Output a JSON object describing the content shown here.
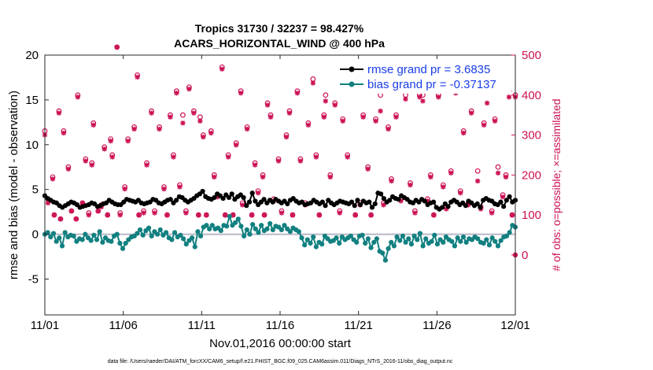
{
  "chart_data": {
    "type": "line",
    "title_line1": "Tropics 31730 / 32237 = 98.427%",
    "title_line2": "ACARS_HORIZONTAL_WIND @ 400 hPa",
    "ylabel_left": "rmse and bias (model - observation)",
    "ylabel_right": "# of obs: o=possible; ×=assimilated",
    "xlabel": "Nov.01,2016 00:00:00 start",
    "footer": "data file: /Users/raeder/DAI/ATM_forcXX/CAM6_setup/f.e21.FHIST_BGC.f09_025.CAM6assim.011/Diags_NTrS_2016-11/obs_diag_output.nc",
    "x_ticks": [
      "11/01",
      "11/06",
      "11/11",
      "11/16",
      "11/21",
      "11/26",
      "12/01"
    ],
    "x_range_days": [
      0,
      30
    ],
    "ylim_left": [
      -9,
      20
    ],
    "yticks_left": [
      "-5",
      "0",
      "5",
      "10",
      "15",
      "20"
    ],
    "ylim_right": [
      -150,
      500
    ],
    "yticks_right": [
      "0",
      "100",
      "200",
      "300",
      "400",
      "500"
    ],
    "colors": {
      "rmse": "#000000",
      "bias": "#128080",
      "obs": "#cc1155",
      "zero_line": "#b8b8c8",
      "legend_text": "#1a3ee8"
    },
    "legend": [
      {
        "key": "rmse",
        "label": "rmse grand pr = 3.6835"
      },
      {
        "key": "bias",
        "label": "bias grand pr = -0.37137"
      }
    ],
    "series": [
      {
        "name": "rmse",
        "values": [
          4.3,
          4.0,
          3.8,
          3.6,
          3.5,
          3.2,
          3.0,
          3.2,
          3.4,
          3.6,
          3.5,
          3.3,
          3.0,
          3.1,
          3.2,
          3.3,
          3.5,
          3.4,
          3.1,
          3.2,
          3.4,
          3.5,
          3.8,
          3.6,
          3.4,
          3.3,
          3.3,
          3.6,
          3.9,
          3.8,
          3.7,
          3.6,
          3.8,
          3.5,
          3.4,
          3.5,
          3.6,
          3.9,
          3.8,
          3.5,
          3.4,
          3.6,
          3.8,
          3.9,
          3.5,
          3.8,
          4.2,
          4.1,
          3.8,
          3.6,
          3.8,
          4.0,
          4.3,
          4.5,
          4.8,
          4.2,
          4.0,
          3.9,
          4.1,
          4.5,
          4.3,
          4.0,
          4.4,
          4.1,
          4.5,
          3.9,
          4.2,
          4.4,
          4.1,
          3.2,
          3.6,
          4.6,
          3.7,
          3.3,
          3.6,
          3.9,
          3.5,
          3.8,
          3.6,
          3.9,
          3.7,
          3.5,
          3.7,
          3.4,
          3.8,
          4.0,
          3.7,
          3.5,
          3.6,
          3.3,
          3.4,
          3.5,
          3.8,
          3.6,
          3.4,
          3.6,
          3.2,
          3.8,
          3.5,
          3.3,
          3.5,
          3.7,
          3.6,
          3.5,
          3.4,
          3.6,
          3.2,
          3.8,
          3.3,
          3.7,
          3.5,
          3.6,
          3.0,
          3.4,
          4.6,
          4.5,
          4.0,
          3.6,
          3.8,
          4.2,
          4.0,
          3.9,
          4.3,
          4.1,
          3.9,
          3.6,
          3.5,
          3.8,
          3.6,
          3.9,
          3.7,
          3.3,
          3.5,
          3.6,
          3.0,
          2.8,
          3.0,
          3.4,
          3.1,
          3.6,
          3.8,
          3.6,
          3.3,
          3.5,
          3.2,
          3.7,
          3.5,
          3.2,
          3.4,
          3.0,
          3.8,
          4.0,
          3.8,
          3.7,
          3.4,
          3.3,
          3.6,
          3.1,
          3.8,
          4.2,
          3.6,
          3.8
        ]
      },
      {
        "name": "bias",
        "values": [
          0.0,
          0.2,
          -0.3,
          0.1,
          -0.8,
          -0.4,
          -1.3,
          0.2,
          -0.3,
          -0.1,
          -0.2,
          -0.8,
          -0.5,
          -0.6,
          0.0,
          -0.4,
          -0.7,
          -0.1,
          -0.6,
          0.3,
          -0.9,
          -0.4,
          -0.7,
          -0.8,
          -0.2,
          0.0,
          -1.0,
          -1.6,
          -1.0,
          -0.6,
          -0.3,
          -0.2,
          0.1,
          0.5,
          -0.1,
          0.4,
          0.7,
          -0.2,
          0.3,
          0.0,
          0.5,
          -0.1,
          0.2,
          -0.4,
          -0.6,
          0.2,
          -0.3,
          -0.1,
          -0.5,
          -1.1,
          -0.7,
          -0.4,
          -1.4,
          0.3,
          -0.2,
          0.8,
          1.0,
          0.6,
          1.0,
          0.6,
          0.7,
          0.4,
          1.0,
          0.9,
          2.0,
          1.0,
          1.3,
          1.7,
          0.9,
          -0.2,
          0.5,
          0.0,
          1.1,
          0.6,
          0.2,
          1.0,
          0.4,
          0.6,
          1.2,
          0.5,
          0.9,
          0.8,
          0.5,
          1.0,
          0.6,
          0.3,
          0.7,
          0.5,
          0.3,
          -0.4,
          -1.2,
          -0.6,
          -1.0,
          -0.3,
          -1.4,
          -0.9,
          -1.1,
          -0.2,
          -0.5,
          -0.8,
          -0.7,
          -0.4,
          -1.0,
          -0.3,
          -0.6,
          -0.4,
          -0.2,
          -0.6,
          -0.9,
          -0.2,
          -0.1,
          -1.0,
          -0.5,
          -1.5,
          -0.9,
          -0.5,
          -1.9,
          -2.1,
          -2.9,
          -1.6,
          -0.9,
          -1.3,
          -0.3,
          -0.7,
          -0.2,
          -0.9,
          -0.5,
          -1.1,
          -0.2,
          -0.6,
          0.1,
          -1.3,
          -0.5,
          -1.0,
          -0.8,
          -0.1,
          -1.1,
          -0.6,
          -0.9,
          -0.3,
          -0.6,
          -0.8,
          -1.3,
          -0.4,
          -0.8,
          -0.3,
          -0.9,
          -0.5,
          -0.6,
          -0.3,
          -0.5,
          -0.9,
          -1.0,
          -0.6,
          -1.2,
          -0.4,
          -0.8,
          -1.3,
          -0.7,
          -0.3,
          -0.2,
          0.2,
          1.0,
          0.8
        ]
      }
    ],
    "obs_possible": [
      [
        0.0,
        310
      ],
      [
        0.2,
        140
      ],
      [
        0.5,
        195
      ],
      [
        0.6,
        100
      ],
      [
        0.9,
        360
      ],
      [
        1.0,
        90
      ],
      [
        1.2,
        310
      ],
      [
        1.5,
        220
      ],
      [
        1.7,
        110
      ],
      [
        2.0,
        90
      ],
      [
        2.1,
        400
      ],
      [
        2.4,
        130
      ],
      [
        2.6,
        240
      ],
      [
        2.8,
        105
      ],
      [
        3.0,
        230
      ],
      [
        3.1,
        330
      ],
      [
        3.4,
        110
      ],
      [
        3.6,
        125
      ],
      [
        3.8,
        270
      ],
      [
        4.0,
        100
      ],
      [
        4.2,
        290
      ],
      [
        4.3,
        250
      ],
      [
        4.6,
        520
      ],
      [
        4.8,
        105
      ],
      [
        5.1,
        170
      ],
      [
        5.3,
        290
      ],
      [
        5.7,
        320
      ],
      [
        5.9,
        450
      ],
      [
        6.0,
        100
      ],
      [
        6.3,
        110
      ],
      [
        6.5,
        230
      ],
      [
        6.8,
        360
      ],
      [
        7.0,
        110
      ],
      [
        7.3,
        320
      ],
      [
        7.6,
        170
      ],
      [
        7.8,
        100
      ],
      [
        8.0,
        350
      ],
      [
        8.2,
        250
      ],
      [
        8.4,
        410
      ],
      [
        8.6,
        175
      ],
      [
        8.8,
        350
      ],
      [
        9.0,
        110
      ],
      [
        9.2,
        420
      ],
      [
        9.5,
        360
      ],
      [
        9.8,
        100
      ],
      [
        9.9,
        345
      ],
      [
        10.1,
        300
      ],
      [
        10.3,
        100
      ],
      [
        10.6,
        310
      ],
      [
        10.8,
        200
      ],
      [
        11.0,
        150
      ],
      [
        11.3,
        470
      ],
      [
        11.5,
        100
      ],
      [
        11.7,
        250
      ],
      [
        12.0,
        100
      ],
      [
        12.2,
        280
      ],
      [
        12.5,
        410
      ],
      [
        12.6,
        130
      ],
      [
        12.9,
        320
      ],
      [
        13.2,
        100
      ],
      [
        13.4,
        230
      ],
      [
        13.6,
        160
      ],
      [
        13.9,
        200
      ],
      [
        14.0,
        100
      ],
      [
        14.2,
        380
      ],
      [
        14.4,
        350
      ],
      [
        14.6,
        140
      ],
      [
        14.9,
        240
      ],
      [
        15.1,
        110
      ],
      [
        15.4,
        300
      ],
      [
        15.6,
        360
      ],
      [
        15.8,
        100
      ],
      [
        16.1,
        410
      ],
      [
        16.3,
        240
      ],
      [
        16.6,
        130
      ],
      [
        16.8,
        330
      ],
      [
        17.1,
        440
      ],
      [
        17.3,
        250
      ],
      [
        17.5,
        100
      ],
      [
        17.8,
        350
      ],
      [
        17.9,
        400
      ],
      [
        18.2,
        200
      ],
      [
        18.5,
        380
      ],
      [
        18.8,
        110
      ],
      [
        19.0,
        340
      ],
      [
        19.3,
        250
      ],
      [
        19.6,
        440
      ],
      [
        19.8,
        100
      ],
      [
        20.1,
        130
      ],
      [
        20.3,
        350
      ],
      [
        20.6,
        220
      ],
      [
        20.8,
        100
      ],
      [
        21.1,
        340
      ],
      [
        21.4,
        400
      ],
      [
        21.6,
        130
      ],
      [
        21.9,
        320
      ],
      [
        22.1,
        190
      ],
      [
        22.4,
        350
      ],
      [
        22.7,
        140
      ],
      [
        23.0,
        400
      ],
      [
        23.3,
        180
      ],
      [
        23.6,
        110
      ],
      [
        23.9,
        400
      ],
      [
        24.1,
        400
      ],
      [
        24.4,
        140
      ],
      [
        24.6,
        200
      ],
      [
        24.8,
        100
      ],
      [
        25.1,
        400
      ],
      [
        25.4,
        175
      ],
      [
        25.6,
        120
      ],
      [
        25.9,
        210
      ],
      [
        26.2,
        410
      ],
      [
        26.5,
        160
      ],
      [
        26.7,
        310
      ],
      [
        27.0,
        130
      ],
      [
        27.2,
        360
      ],
      [
        27.4,
        420
      ],
      [
        27.6,
        210
      ],
      [
        27.8,
        120
      ],
      [
        28.0,
        330
      ],
      [
        28.2,
        410
      ],
      [
        28.5,
        110
      ],
      [
        28.7,
        340
      ],
      [
        28.9,
        220
      ],
      [
        29.2,
        150
      ],
      [
        29.4,
        200
      ],
      [
        29.6,
        410
      ],
      [
        29.8,
        100
      ],
      [
        30.0,
        400
      ]
    ],
    "obs_assimilated": [
      [
        0.0,
        300
      ],
      [
        0.2,
        130
      ],
      [
        0.5,
        190
      ],
      [
        0.6,
        100
      ],
      [
        0.9,
        355
      ],
      [
        1.0,
        90
      ],
      [
        1.2,
        305
      ],
      [
        1.5,
        215
      ],
      [
        1.7,
        110
      ],
      [
        2.0,
        90
      ],
      [
        2.1,
        395
      ],
      [
        2.4,
        130
      ],
      [
        2.6,
        235
      ],
      [
        2.8,
        100
      ],
      [
        3.0,
        225
      ],
      [
        3.1,
        325
      ],
      [
        3.4,
        110
      ],
      [
        3.6,
        120
      ],
      [
        3.8,
        265
      ],
      [
        4.0,
        100
      ],
      [
        4.2,
        285
      ],
      [
        4.3,
        245
      ],
      [
        4.6,
        520
      ],
      [
        4.8,
        100
      ],
      [
        5.1,
        165
      ],
      [
        5.3,
        285
      ],
      [
        5.7,
        315
      ],
      [
        5.9,
        445
      ],
      [
        6.0,
        100
      ],
      [
        6.3,
        105
      ],
      [
        6.5,
        225
      ],
      [
        6.8,
        355
      ],
      [
        7.0,
        105
      ],
      [
        7.3,
        315
      ],
      [
        7.6,
        165
      ],
      [
        7.8,
        100
      ],
      [
        8.0,
        345
      ],
      [
        8.2,
        245
      ],
      [
        8.4,
        405
      ],
      [
        8.6,
        170
      ],
      [
        8.8,
        330
      ],
      [
        9.0,
        105
      ],
      [
        9.2,
        415
      ],
      [
        9.5,
        355
      ],
      [
        9.8,
        100
      ],
      [
        9.9,
        335
      ],
      [
        10.1,
        295
      ],
      [
        10.3,
        100
      ],
      [
        10.6,
        305
      ],
      [
        10.8,
        195
      ],
      [
        11.0,
        145
      ],
      [
        11.3,
        465
      ],
      [
        11.5,
        100
      ],
      [
        11.7,
        245
      ],
      [
        12.0,
        100
      ],
      [
        12.2,
        275
      ],
      [
        12.5,
        405
      ],
      [
        12.6,
        125
      ],
      [
        12.9,
        315
      ],
      [
        13.2,
        100
      ],
      [
        13.4,
        225
      ],
      [
        13.6,
        155
      ],
      [
        13.9,
        195
      ],
      [
        14.0,
        100
      ],
      [
        14.2,
        375
      ],
      [
        14.4,
        345
      ],
      [
        14.6,
        135
      ],
      [
        14.9,
        235
      ],
      [
        15.1,
        105
      ],
      [
        15.4,
        295
      ],
      [
        15.6,
        355
      ],
      [
        15.8,
        100
      ],
      [
        16.1,
        405
      ],
      [
        16.3,
        235
      ],
      [
        16.6,
        125
      ],
      [
        16.8,
        325
      ],
      [
        17.1,
        430
      ],
      [
        17.3,
        245
      ],
      [
        17.5,
        100
      ],
      [
        17.8,
        345
      ],
      [
        17.9,
        385
      ],
      [
        18.2,
        195
      ],
      [
        18.5,
        375
      ],
      [
        18.8,
        105
      ],
      [
        19.0,
        335
      ],
      [
        19.3,
        245
      ],
      [
        19.6,
        435
      ],
      [
        19.8,
        100
      ],
      [
        20.1,
        125
      ],
      [
        20.3,
        345
      ],
      [
        20.6,
        215
      ],
      [
        20.8,
        100
      ],
      [
        21.1,
        335
      ],
      [
        21.4,
        360
      ],
      [
        21.6,
        125
      ],
      [
        21.9,
        315
      ],
      [
        22.1,
        185
      ],
      [
        22.4,
        345
      ],
      [
        22.7,
        135
      ],
      [
        23.0,
        390
      ],
      [
        23.3,
        175
      ],
      [
        23.6,
        105
      ],
      [
        23.9,
        395
      ],
      [
        24.1,
        385
      ],
      [
        24.4,
        135
      ],
      [
        24.6,
        195
      ],
      [
        24.8,
        100
      ],
      [
        25.1,
        395
      ],
      [
        25.4,
        170
      ],
      [
        25.6,
        115
      ],
      [
        25.9,
        205
      ],
      [
        26.2,
        405
      ],
      [
        26.5,
        155
      ],
      [
        26.7,
        305
      ],
      [
        27.0,
        125
      ],
      [
        27.2,
        355
      ],
      [
        27.4,
        415
      ],
      [
        27.6,
        185
      ],
      [
        27.8,
        115
      ],
      [
        28.0,
        325
      ],
      [
        28.2,
        380
      ],
      [
        28.5,
        105
      ],
      [
        28.7,
        335
      ],
      [
        28.9,
        205
      ],
      [
        29.2,
        145
      ],
      [
        29.4,
        195
      ],
      [
        29.6,
        395
      ],
      [
        29.8,
        100
      ],
      [
        30.0,
        395
      ]
    ],
    "obs_special": [
      [
        30.0,
        0
      ]
    ]
  }
}
